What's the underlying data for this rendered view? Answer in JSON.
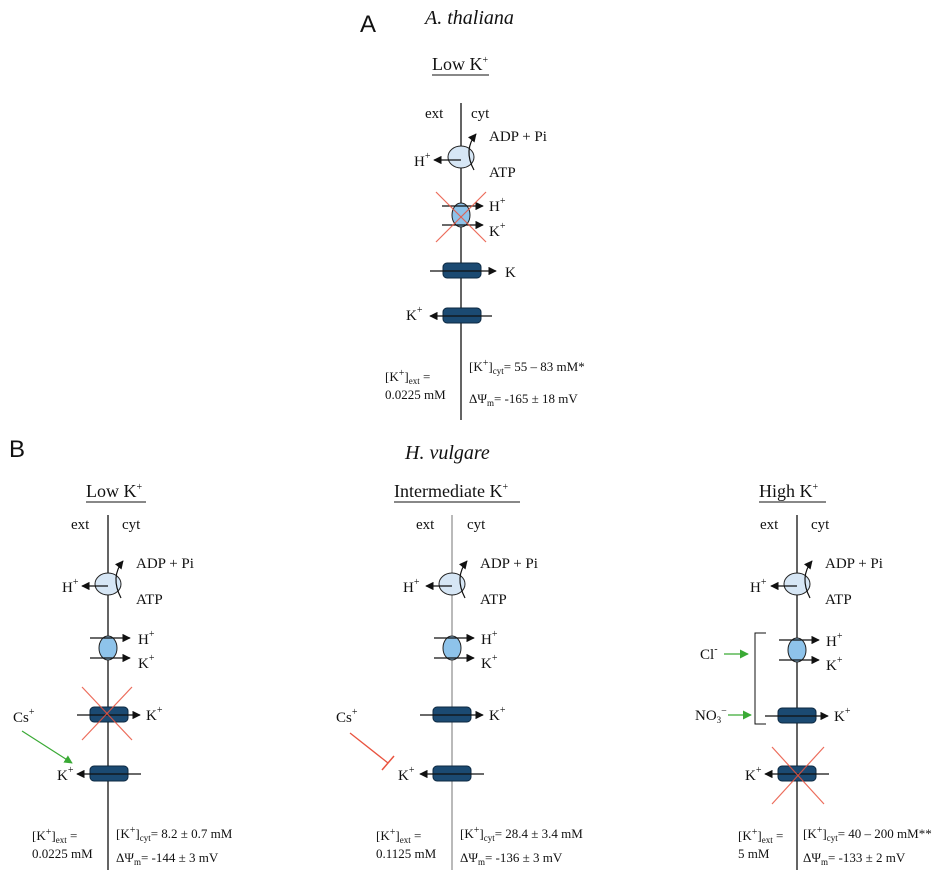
{
  "panel_a": {
    "letter": "A",
    "species": "A. thaliana",
    "condition": "Low K",
    "ext": "ext",
    "cyt": "cyt",
    "atpase_product": "ADP + Pi",
    "atpase_substrate": "ATP",
    "h_out": "H",
    "symport_h": "H",
    "symport_k": "K",
    "channel_in_k": "K",
    "channel_out_k": "K",
    "conc_ext_label": "[K",
    "conc_ext_value": "0.0225 mM",
    "conc_cyt_value": "= 55 – 83 mM*",
    "potential_value": "= -165 ± 18 mV"
  },
  "panel_b": {
    "letter": "B",
    "species": "H. vulgare",
    "columns": [
      {
        "condition": "Low K",
        "ext": "ext",
        "cyt": "cyt",
        "atpase_product": "ADP + Pi",
        "atpase_substrate": "ATP",
        "h_out": "H",
        "symport_h": "H",
        "symport_k": "K",
        "channel_in_k": "K",
        "channel_out_k": "K",
        "inhibitor": "Cs",
        "conc_ext_value": "0.0225 mM",
        "conc_cyt_value": "= 8.2 ± 0.7 mM",
        "potential_value": "= -144 ± 3 mV"
      },
      {
        "condition": "Intermediate K",
        "ext": "ext",
        "cyt": "cyt",
        "atpase_product": "ADP + Pi",
        "atpase_substrate": "ATP",
        "h_out": "H",
        "symport_h": "H",
        "symport_k": "K",
        "channel_in_k": "K",
        "channel_out_k": "K",
        "inhibitor": "Cs",
        "conc_ext_value": "0.1125 mM",
        "conc_cyt_value": "= 28.4 ± 3.4 mM",
        "potential_value": "= -136 ± 3 mV"
      },
      {
        "condition": "High K",
        "ext": "ext",
        "cyt": "cyt",
        "atpase_product": "ADP + Pi",
        "atpase_substrate": "ATP",
        "h_out": "H",
        "symport_h": "H",
        "symport_k": "K",
        "channel_in_k": "K",
        "channel_out_k": "K",
        "anion_cl": "Cl",
        "anion_no3": "NO",
        "conc_ext_value": "5 mM",
        "conc_cyt_value": "= 40 – 200 mM**",
        "potential_value": "= -133 ± 2 mV"
      }
    ]
  },
  "colors": {
    "channel": "#1b4a72",
    "atpase": "#d6e6f5",
    "symporter": "#8ec3ea",
    "inhibition": "#e9533f",
    "anion_arrow": "#3aaa35",
    "membrane": "#222222",
    "membrane_grey": "#a8a8a8"
  }
}
